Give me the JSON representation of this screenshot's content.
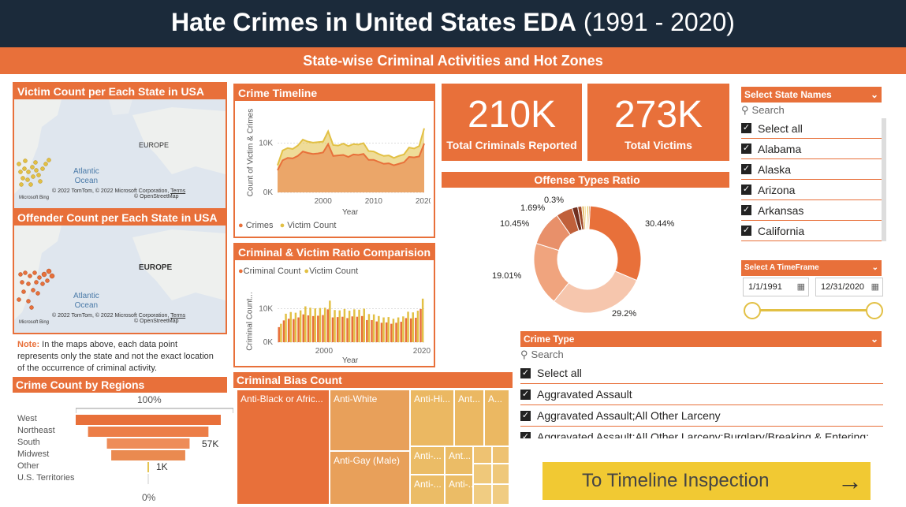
{
  "header": {
    "title_bold": "Hate Crimes in United States EDA",
    "title_rest": " (1991 - 2020)"
  },
  "subheader": "State-wise Criminal Activities and Hot Zones",
  "maps": {
    "victim_title": "Victim Count per Each State in USA",
    "offender_title": "Offender Count per Each State in USA",
    "europe": "EUROPE",
    "ocean1": "Atlantic",
    "ocean2": "Ocean",
    "attribution": "© 2022 TomTom, © 2022 Microsoft Corporation,",
    "terms": "Terms",
    "osm": "© OpenStreetMap",
    "bing": "Microsoft Bing"
  },
  "note": {
    "label": "Note:",
    "text": " In the maps above, each data point represents only the state and not the exact location of the occurrence of criminal activity."
  },
  "region_chart": {
    "title": "Crime Count by Regions",
    "top_label": "100%",
    "bottom_label": "0%",
    "label_57k": "57K",
    "label_1k": "1K"
  },
  "timeline": {
    "title": "Crime Timeline",
    "ylabel": "Count of Victim & Crimes",
    "xlabel": "Year",
    "legend": [
      "Crimes",
      "Victim Count"
    ]
  },
  "ratio": {
    "title": "Criminal & Victim Ratio Comparision",
    "ylabel": "Criminal Count...",
    "xlabel": "Year",
    "legend": [
      "Criminal Count",
      "Victim Count"
    ]
  },
  "kpis": [
    {
      "value": "210K",
      "label": "Total Criminals Reported"
    },
    {
      "value": "273K",
      "label": "Total Victims"
    }
  ],
  "offense": {
    "title": "Offense Types Ratio",
    "labels": [
      "30.44%",
      "29.2%",
      "19.01%",
      "10.45%",
      "1.69%",
      "0.3%"
    ]
  },
  "bias": {
    "title": "Criminal Bias Count",
    "cells": [
      "Anti-Black or Afric...",
      "Anti-White",
      "Anti-Hi...",
      "Ant...",
      "A...",
      "Anti-Gay (Male)",
      "Anti-...",
      "Ant...",
      "Anti-...",
      "Anti-..."
    ]
  },
  "state_slicer": {
    "title": "Select State Names",
    "search": "Search",
    "items": [
      "Select all",
      "Alabama",
      "Alaska",
      "Arizona",
      "Arkansas",
      "California"
    ]
  },
  "timeframe": {
    "title": "Select A TimeFrame",
    "start": "1/1/1991",
    "end": "12/31/2020"
  },
  "crime_type": {
    "title": "Crime Type",
    "search": "Search",
    "items": [
      "Select all",
      "Aggravated Assault",
      "Aggravated Assault;All Other Larceny",
      "Aggravated Assault;All Other Larceny;Burglary/Breaking & Entering;"
    ]
  },
  "button": {
    "label": "To Timeline Inspection"
  },
  "chart_data": [
    {
      "type": "area",
      "title": "Crime Timeline",
      "xlabel": "Year",
      "ylabel": "Count of Victim & Crimes",
      "x": [
        1991,
        1992,
        1993,
        1994,
        1995,
        1996,
        1997,
        1998,
        1999,
        2000,
        2001,
        2002,
        2003,
        2004,
        2005,
        2006,
        2007,
        2008,
        2009,
        2010,
        2011,
        2012,
        2013,
        2014,
        2015,
        2016,
        2017,
        2018,
        2019,
        2020
      ],
      "x_ticks": [
        "2000",
        "2010",
        "2020"
      ],
      "y_ticks": [
        "0K",
        "10K"
      ],
      "ylim": [
        0,
        16000
      ],
      "series": [
        {
          "name": "Crimes",
          "values": [
            4500,
            6500,
            7000,
            6900,
            7400,
            8300,
            8000,
            7800,
            7900,
            8100,
            9800,
            7400,
            7500,
            7600,
            7200,
            7700,
            7600,
            7800,
            6600,
            6600,
            6200,
            5800,
            5900,
            5500,
            5800,
            6100,
            7200,
            7100,
            7300,
            9900
          ],
          "color": "#e8703a"
        },
        {
          "name": "Victim Count",
          "values": [
            5500,
            8500,
            9000,
            8800,
            9500,
            10700,
            10300,
            10100,
            10200,
            10300,
            12400,
            9600,
            9500,
            9900,
            9400,
            9800,
            9700,
            10000,
            8400,
            8300,
            7800,
            7400,
            7500,
            7000,
            7400,
            7700,
            9100,
            8900,
            9400,
            13000
          ],
          "color": "#e2c044"
        }
      ]
    },
    {
      "type": "bar",
      "title": "Criminal & Victim Ratio Comparision",
      "xlabel": "Year",
      "ylabel": "Criminal Count...",
      "categories": [
        1991,
        1992,
        1993,
        1994,
        1995,
        1996,
        1997,
        1998,
        1999,
        2000,
        2001,
        2002,
        2003,
        2004,
        2005,
        2006,
        2007,
        2008,
        2009,
        2010,
        2011,
        2012,
        2013,
        2014,
        2015,
        2016,
        2017,
        2018,
        2019,
        2020
      ],
      "x_ticks": [
        "2000",
        "2020"
      ],
      "y_ticks": [
        "0K",
        "10K"
      ],
      "ylim": [
        0,
        16000
      ],
      "series": [
        {
          "name": "Criminal Count",
          "values": [
            4500,
            6500,
            7000,
            6900,
            7400,
            8300,
            8000,
            7800,
            7900,
            8100,
            9800,
            7400,
            7500,
            7600,
            7200,
            7700,
            7600,
            7800,
            6600,
            6600,
            6200,
            5800,
            5900,
            5500,
            5800,
            6100,
            7200,
            7100,
            7300,
            9900
          ],
          "color": "#e8703a"
        },
        {
          "name": "Victim Count",
          "values": [
            5500,
            8500,
            9000,
            8800,
            9500,
            10700,
            10300,
            10100,
            10200,
            10300,
            12400,
            9600,
            9500,
            9900,
            9400,
            9800,
            9700,
            10000,
            8400,
            8300,
            7800,
            7400,
            7500,
            7000,
            7400,
            7700,
            9100,
            8900,
            9400,
            13000
          ],
          "color": "#e2c044"
        }
      ]
    },
    {
      "type": "pie",
      "title": "Offense Types Ratio",
      "values": [
        30.44,
        29.2,
        19.01,
        10.45,
        5.0,
        1.69,
        1.2,
        0.8,
        0.5,
        0.3,
        0.5,
        0.4
      ],
      "colors": [
        "#e8703a",
        "#f6c6ad",
        "#f0a47e",
        "#e8906a",
        "#c0603a",
        "#703020",
        "#a04a2a",
        "#e8c070",
        "#f0d890",
        "#f4e0a8",
        "#e2c044",
        "#d08a50"
      ]
    },
    {
      "type": "bar",
      "title": "Crime Count by Regions",
      "categories": [
        "West",
        "Northeast",
        "South",
        "Midwest",
        "Other",
        "U.S. Territories"
      ],
      "values": [
        100,
        83,
        57,
        51,
        1,
        0.1
      ],
      "colors": [
        "#e8703a",
        "#ec7e48",
        "#ee8c58",
        "#ea8a50",
        "#e2c044",
        "#ccc"
      ]
    }
  ]
}
